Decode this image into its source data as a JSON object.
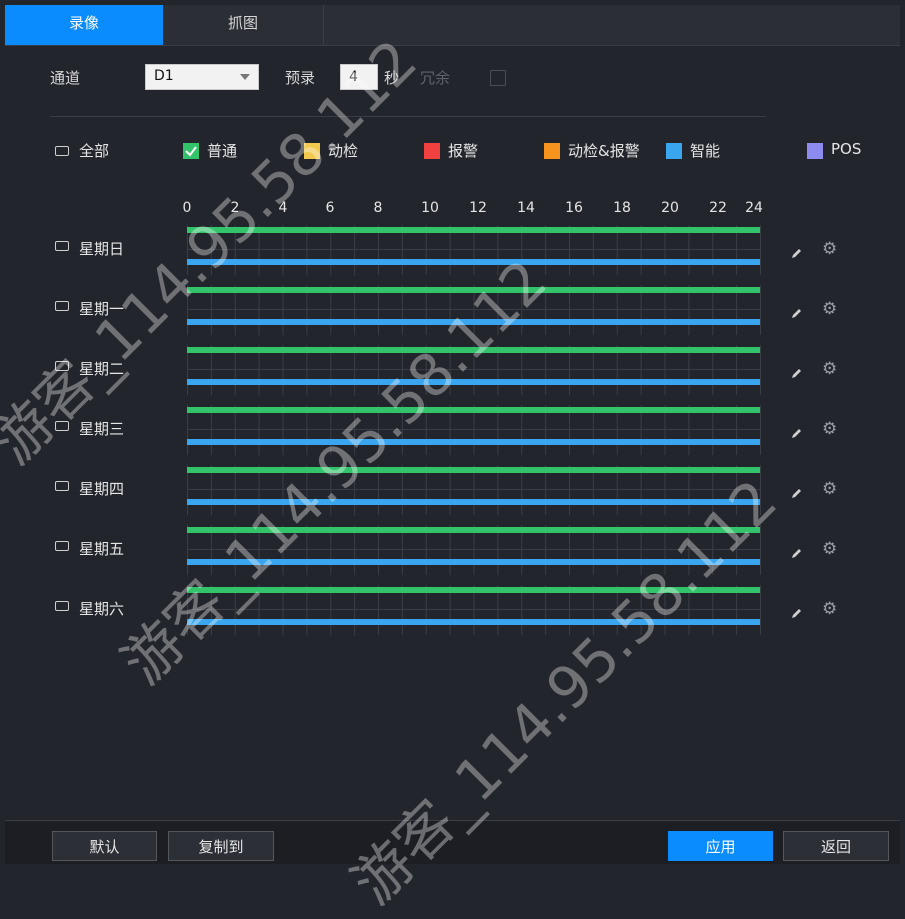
{
  "tabs": [
    {
      "label": "录像",
      "active": true
    },
    {
      "label": "抓图",
      "active": false
    }
  ],
  "controls": {
    "channel_label": "通道",
    "channel_value": "D1",
    "prerecord_label": "预录",
    "prerecord_value": "4",
    "seconds_label": "秒",
    "redundancy_label": "冗余"
  },
  "legend": {
    "all_label": "全部",
    "items": [
      {
        "label": "普通",
        "color": "#33c46b",
        "checked": true
      },
      {
        "label": "动检",
        "color": "#f2c94c"
      },
      {
        "label": "报警",
        "color": "#f04040"
      },
      {
        "label": "动检&报警",
        "color": "#f7941d"
      },
      {
        "label": "智能",
        "color": "#3aa6f0"
      },
      {
        "label": "POS",
        "color": "#8c8cf0"
      }
    ]
  },
  "hours": [
    "0",
    "2",
    "4",
    "6",
    "8",
    "10",
    "12",
    "14",
    "16",
    "18",
    "20",
    "22",
    "24"
  ],
  "days": [
    {
      "label": "星期日"
    },
    {
      "label": "星期一"
    },
    {
      "label": "星期二"
    },
    {
      "label": "星期三"
    },
    {
      "label": "星期四"
    },
    {
      "label": "星期五"
    },
    {
      "label": "星期六"
    }
  ],
  "schedule": {
    "start_hour": 0,
    "end_hour": 24,
    "types": [
      "普通",
      "智能"
    ]
  },
  "footer": {
    "default_label": "默认",
    "copy_label": "复制到",
    "apply_label": "应用",
    "back_label": "返回"
  },
  "watermark_text": "游客_114.95.58.112",
  "icons": {
    "edit": "pencil-icon",
    "settings": "gear-icon"
  }
}
